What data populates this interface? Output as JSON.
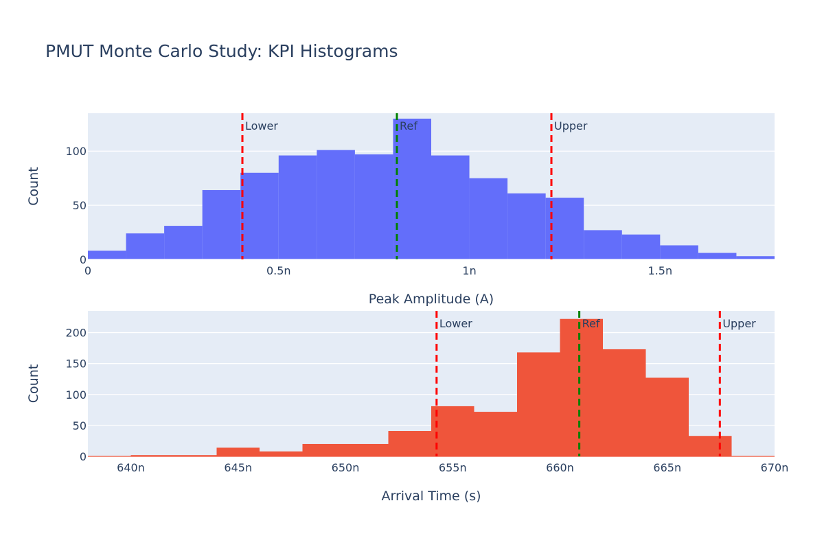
{
  "title": "PMUT Monte Carlo Study: KPI Histograms",
  "chart_data": [
    {
      "type": "histogram",
      "name": "peak-amplitude",
      "xlabel": "Peak Amplitude (A)",
      "ylabel": "Count",
      "color": "#636efa",
      "xlim": [
        0,
        1.8
      ],
      "ylim": [
        0,
        135
      ],
      "x_ticks": [
        0,
        0.5,
        1,
        1.5
      ],
      "x_tick_labels": [
        "0",
        "0.5n",
        "1n",
        "1.5n"
      ],
      "y_ticks": [
        0,
        50,
        100
      ],
      "y_tick_labels": [
        "0",
        "50",
        "100"
      ],
      "bins": [
        {
          "x0": 0.0,
          "x1": 0.1,
          "count": 8
        },
        {
          "x0": 0.1,
          "x1": 0.2,
          "count": 24
        },
        {
          "x0": 0.2,
          "x1": 0.3,
          "count": 31
        },
        {
          "x0": 0.3,
          "x1": 0.4,
          "count": 64
        },
        {
          "x0": 0.4,
          "x1": 0.5,
          "count": 80
        },
        {
          "x0": 0.5,
          "x1": 0.6,
          "count": 96
        },
        {
          "x0": 0.6,
          "x1": 0.7,
          "count": 101
        },
        {
          "x0": 0.7,
          "x1": 0.8,
          "count": 97
        },
        {
          "x0": 0.8,
          "x1": 0.9,
          "count": 130
        },
        {
          "x0": 0.9,
          "x1": 1.0,
          "count": 96
        },
        {
          "x0": 1.0,
          "x1": 1.1,
          "count": 75
        },
        {
          "x0": 1.1,
          "x1": 1.2,
          "count": 61
        },
        {
          "x0": 1.2,
          "x1": 1.3,
          "count": 57
        },
        {
          "x0": 1.3,
          "x1": 1.4,
          "count": 27
        },
        {
          "x0": 1.4,
          "x1": 1.5,
          "count": 23
        },
        {
          "x0": 1.5,
          "x1": 1.6,
          "count": 13
        },
        {
          "x0": 1.6,
          "x1": 1.7,
          "count": 6
        },
        {
          "x0": 1.7,
          "x1": 1.8,
          "count": 3
        }
      ],
      "vlines": [
        {
          "x": 0.405,
          "label": "Lower",
          "color": "#ff0000"
        },
        {
          "x": 0.81,
          "label": "Ref",
          "color": "#008000"
        },
        {
          "x": 1.215,
          "label": "Upper",
          "color": "#ff0000"
        }
      ]
    },
    {
      "type": "histogram",
      "name": "arrival-time",
      "xlabel": "Arrival Time (s)",
      "ylabel": "Count",
      "color": "#ef553b",
      "xlim": [
        638,
        670
      ],
      "ylim": [
        0,
        235
      ],
      "x_ticks": [
        640,
        645,
        650,
        655,
        660,
        665,
        670
      ],
      "x_tick_labels": [
        "640n",
        "645n",
        "650n",
        "655n",
        "660n",
        "665n",
        "670n"
      ],
      "y_ticks": [
        0,
        50,
        100,
        150,
        200
      ],
      "y_tick_labels": [
        "0",
        "50",
        "100",
        "150",
        "200"
      ],
      "bins": [
        {
          "x0": 640,
          "x1": 642,
          "count": 2
        },
        {
          "x0": 642,
          "x1": 644,
          "count": 2
        },
        {
          "x0": 644,
          "x1": 646,
          "count": 14
        },
        {
          "x0": 646,
          "x1": 648,
          "count": 8
        },
        {
          "x0": 648,
          "x1": 650,
          "count": 20
        },
        {
          "x0": 650,
          "x1": 652,
          "count": 20
        },
        {
          "x0": 652,
          "x1": 654,
          "count": 41
        },
        {
          "x0": 654,
          "x1": 656,
          "count": 81
        },
        {
          "x0": 656,
          "x1": 658,
          "count": 72
        },
        {
          "x0": 658,
          "x1": 660,
          "count": 168
        },
        {
          "x0": 660,
          "x1": 662,
          "count": 222
        },
        {
          "x0": 662,
          "x1": 664,
          "count": 173
        },
        {
          "x0": 664,
          "x1": 666,
          "count": 127
        },
        {
          "x0": 666,
          "x1": 668,
          "count": 33
        }
      ],
      "vlines": [
        {
          "x": 654.25,
          "label": "Lower",
          "color": "#ff0000"
        },
        {
          "x": 660.9,
          "label": "Ref",
          "color": "#008000"
        },
        {
          "x": 667.45,
          "label": "Upper",
          "color": "#ff0000"
        }
      ]
    }
  ]
}
